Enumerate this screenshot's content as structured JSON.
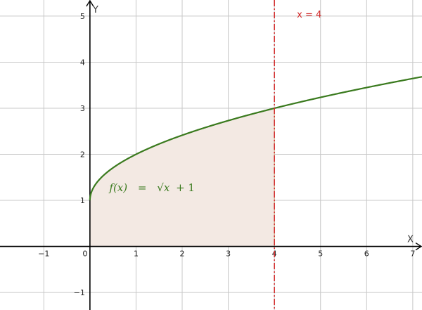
{
  "chart_data": {
    "type": "line",
    "title": "",
    "xlabel": "X",
    "ylabel": "Y",
    "xlim": [
      -1.95,
      7.2
    ],
    "ylim": [
      -1.38,
      5.35
    ],
    "grid": true,
    "x_ticks": [
      -1,
      0,
      1,
      2,
      3,
      4,
      5,
      6,
      7
    ],
    "y_ticks": [
      -1,
      1,
      2,
      3,
      4,
      5
    ],
    "x_tick_labels": [
      "−1",
      "0",
      "1",
      "2",
      "3",
      "4",
      "5",
      "6",
      "7"
    ],
    "y_tick_labels": [
      "−1",
      "1",
      "2",
      "3",
      "4",
      "5"
    ],
    "origin_label": "0",
    "series": [
      {
        "label": "f(x) = √x + 1",
        "label_parts": [
          "f(x)",
          "=",
          "√x",
          "+ 1"
        ],
        "color": "#3a7a1e",
        "domain": [
          0,
          7.2
        ],
        "x": [
          0,
          0.25,
          0.5,
          1,
          1.5,
          2,
          2.5,
          3,
          3.5,
          4,
          5,
          6,
          7
        ],
        "y": [
          1,
          1.5,
          1.71,
          2,
          2.22,
          2.41,
          2.58,
          2.73,
          2.87,
          3,
          3.24,
          3.45,
          3.65
        ]
      }
    ],
    "shaded_region": {
      "x_from": 0,
      "x_to": 4,
      "fill": "#f3e9e3"
    },
    "vertical_line": {
      "x": 4,
      "label": "x = 4",
      "color": "#d22a2a",
      "style": "dash-dot"
    }
  }
}
